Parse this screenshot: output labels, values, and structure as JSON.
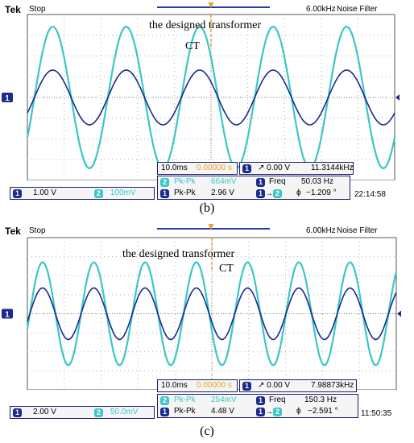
{
  "panels": [
    {
      "brand": "Tek",
      "status": "Stop",
      "sample_rate": "6.00kHz",
      "filter": "Noise Filter",
      "label_designed": "the designed transformer",
      "label_ct": "CT",
      "ch1_marker": "1",
      "timebase": "10.0ms",
      "trig_pos": "0.00000 s",
      "trig_ch": "1",
      "trig_level": "0.00 V",
      "trig_freq": "11.3144kHz",
      "ch1_scale": "1.00 V",
      "ch2_scale": "100mV",
      "ch2_meas_label": "Pk-Pk",
      "ch2_meas_val": "664mV",
      "ch1_meas_label": "Pk-Pk",
      "ch1_meas_val": "2.96 V",
      "freq_label": "Freq",
      "freq_val": "50.03 Hz",
      "phase_val": "−1.209 °",
      "clock": "22:14:58",
      "caption": "(b)"
    },
    {
      "brand": "Tek",
      "status": "Stop",
      "sample_rate": "6.00kHz",
      "filter": "Noise Filter",
      "label_designed": "the designed transformer",
      "label_ct": "CT",
      "ch1_marker": "1",
      "timebase": "10.0ms",
      "trig_pos": "0.00000 s",
      "trig_ch": "1",
      "trig_level": "0.00 V",
      "trig_freq": "7.98873kHz",
      "ch1_scale": "2.00 V",
      "ch2_scale": "50.0mV",
      "ch2_meas_label": "Pk-Pk",
      "ch2_meas_val": "254mV",
      "ch1_meas_label": "Pk-Pk",
      "ch1_meas_val": "4.48 V",
      "freq_label": "Freq",
      "freq_val": "150.3 Hz",
      "phase_val": "−2.591 °",
      "clock": "11:50:35",
      "caption": "(c)"
    }
  ],
  "colors": {
    "ch1": "#1a2a8e",
    "ch2": "#3cc6c6",
    "grid": "#b0b0b0",
    "marker": "#e8a020"
  }
}
